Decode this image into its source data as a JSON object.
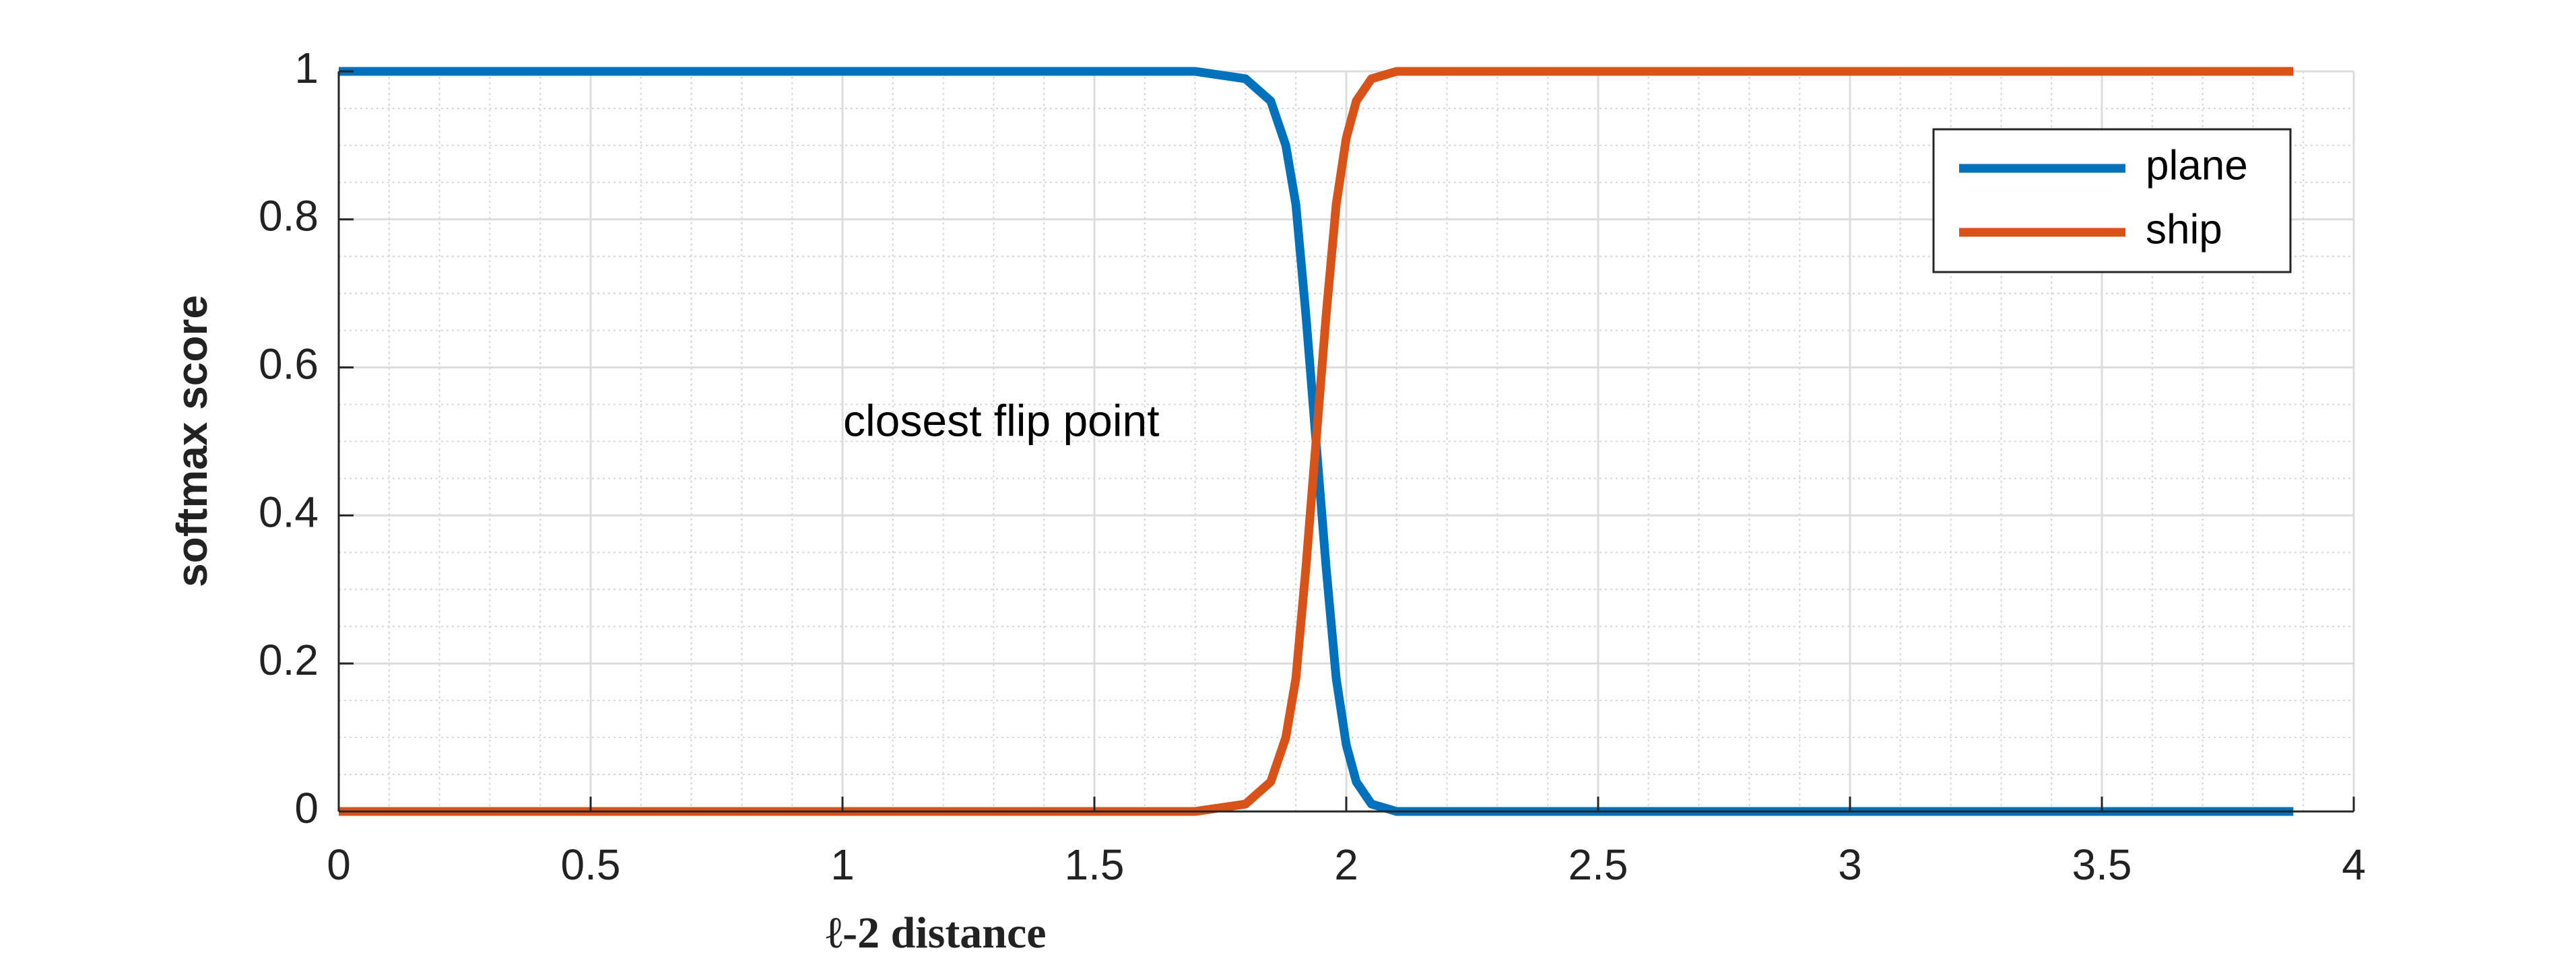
{
  "chart_data": {
    "type": "line",
    "x_label": "ℓ-2 distance",
    "y_label": "softmax score",
    "annotation": "closest flip point",
    "x": [
      0,
      0.5,
      1,
      1.5,
      1.7,
      1.8,
      1.85,
      1.88,
      1.9,
      1.92,
      1.94,
      1.96,
      1.98,
      2.0,
      2.02,
      2.05,
      2.1,
      2.2,
      2.5,
      3,
      3.5,
      3.88
    ],
    "series": [
      {
        "name": "plane",
        "color": "#0072bd",
        "values": [
          1,
          1,
          1,
          1,
          1,
          0.99,
          0.96,
          0.9,
          0.82,
          0.67,
          0.5,
          0.33,
          0.18,
          0.09,
          0.04,
          0.01,
          0,
          0,
          0,
          0,
          0,
          0
        ]
      },
      {
        "name": "ship",
        "color": "#d95319",
        "values": [
          0,
          0,
          0,
          0,
          0,
          0.01,
          0.04,
          0.1,
          0.18,
          0.33,
          0.5,
          0.67,
          0.82,
          0.91,
          0.96,
          0.99,
          1,
          1,
          1,
          1,
          1,
          1
        ]
      }
    ],
    "xlim": [
      0,
      4
    ],
    "ylim": [
      0,
      1
    ],
    "xticks": [
      0,
      0.5,
      1,
      1.5,
      2,
      2.5,
      3,
      3.5,
      4
    ],
    "yticks": [
      0,
      0.2,
      0.4,
      0.6,
      0.8,
      1
    ],
    "grid": true,
    "minor_grid": true,
    "legend": "upper right"
  }
}
